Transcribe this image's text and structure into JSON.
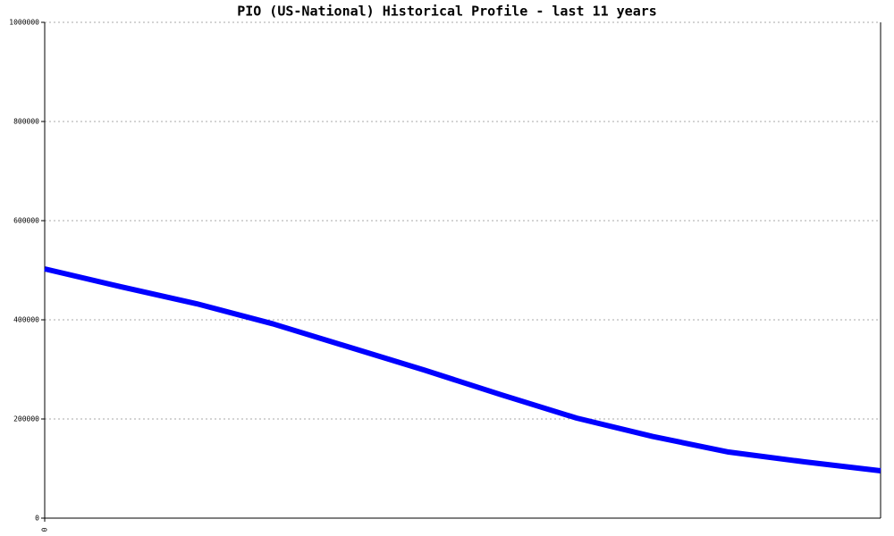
{
  "chart_data": {
    "type": "line",
    "title": "PIO (US-National) Historical Profile - last 11 years",
    "categories": [
      "0",
      null,
      null,
      null,
      null,
      null,
      null,
      null,
      null,
      null,
      null,
      null
    ],
    "series": [
      {
        "color": "#0000ff",
        "values": [
          502700,
          466700,
          432400,
          392000,
          345200,
          298400,
          249200,
          201800,
          164700,
          133300,
          113500,
          95500
        ]
      }
    ],
    "ylim": [
      0,
      1000000
    ],
    "yticks": [
      0,
      200000,
      400000,
      600000,
      800000,
      1000000
    ],
    "grid": true
  }
}
